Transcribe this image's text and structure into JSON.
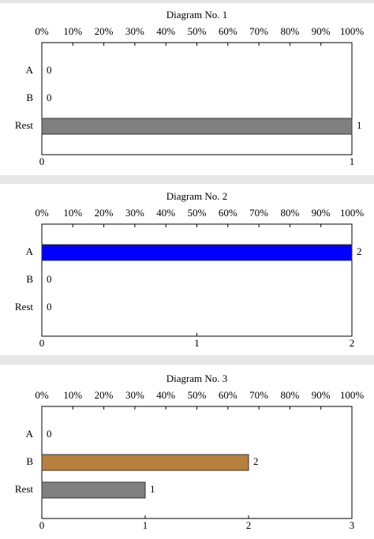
{
  "chart_data": [
    {
      "type": "bar",
      "orientation": "horizontal",
      "title": "Diagram No. 1",
      "categories": [
        "A",
        "B",
        "Rest"
      ],
      "values": [
        0,
        0,
        1
      ],
      "colors": [
        "#0000ff",
        "#b8803f",
        "#808080"
      ],
      "xlim": [
        0,
        1
      ],
      "xticks": [
        0,
        1
      ],
      "x2lim": [
        0,
        100
      ],
      "x2ticks": [
        {
          "value": 0,
          "label": "0%"
        },
        {
          "value": 10,
          "label": "10%"
        },
        {
          "value": 20,
          "label": "20%"
        },
        {
          "value": 30,
          "label": "30%"
        },
        {
          "value": 40,
          "label": "40%"
        },
        {
          "value": 50,
          "label": "50%"
        },
        {
          "value": 60,
          "label": "60%"
        },
        {
          "value": 70,
          "label": "70%"
        },
        {
          "value": 80,
          "label": "80%"
        },
        {
          "value": 90,
          "label": "90%"
        },
        {
          "value": 100,
          "label": "100%"
        }
      ]
    },
    {
      "type": "bar",
      "orientation": "horizontal",
      "title": "Diagram No. 2",
      "categories": [
        "A",
        "B",
        "Rest"
      ],
      "values": [
        2,
        0,
        0
      ],
      "colors": [
        "#0000ff",
        "#b8803f",
        "#808080"
      ],
      "xlim": [
        0,
        2
      ],
      "xticks": [
        0,
        1,
        2
      ],
      "x2lim": [
        0,
        100
      ],
      "x2ticks": [
        {
          "value": 0,
          "label": "0%"
        },
        {
          "value": 10,
          "label": "10%"
        },
        {
          "value": 20,
          "label": "20%"
        },
        {
          "value": 30,
          "label": "30%"
        },
        {
          "value": 40,
          "label": "40%"
        },
        {
          "value": 50,
          "label": "50%"
        },
        {
          "value": 60,
          "label": "60%"
        },
        {
          "value": 70,
          "label": "70%"
        },
        {
          "value": 80,
          "label": "80%"
        },
        {
          "value": 90,
          "label": "90%"
        },
        {
          "value": 100,
          "label": "100%"
        }
      ]
    },
    {
      "type": "bar",
      "orientation": "horizontal",
      "title": "Diagram No. 3",
      "categories": [
        "A",
        "B",
        "Rest"
      ],
      "values": [
        0,
        2,
        1
      ],
      "colors": [
        "#0000ff",
        "#b8803f",
        "#808080"
      ],
      "xlim": [
        0,
        3
      ],
      "xticks": [
        0,
        1,
        2,
        3
      ],
      "x2lim": [
        0,
        100
      ],
      "x2ticks": [
        {
          "value": 0,
          "label": "0%"
        },
        {
          "value": 10,
          "label": "10%"
        },
        {
          "value": 20,
          "label": "20%"
        },
        {
          "value": 30,
          "label": "30%"
        },
        {
          "value": 40,
          "label": "40%"
        },
        {
          "value": 50,
          "label": "50%"
        },
        {
          "value": 60,
          "label": "60%"
        },
        {
          "value": 70,
          "label": "70%"
        },
        {
          "value": 80,
          "label": "80%"
        },
        {
          "value": 90,
          "label": "90%"
        },
        {
          "value": 100,
          "label": "100%"
        }
      ]
    }
  ]
}
